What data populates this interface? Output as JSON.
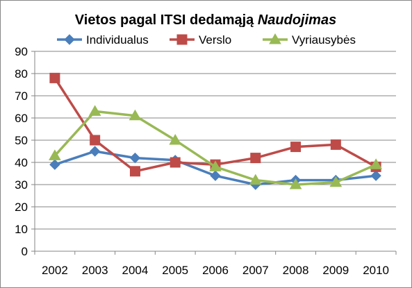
{
  "chart_data": {
    "type": "line",
    "title": "Vietos pagal ITSI dedamąją",
    "title_emphasis": "Naudojimas",
    "xlabel": "",
    "ylabel": "",
    "categories": [
      "2002",
      "2003",
      "2004",
      "2005",
      "2006",
      "2007",
      "2008",
      "2009",
      "2010"
    ],
    "ylim": [
      0,
      90
    ],
    "yticks": [
      "0",
      "10",
      "20",
      "30",
      "40",
      "50",
      "60",
      "70",
      "80",
      "90"
    ],
    "grid": true,
    "legend_position": "top",
    "series": [
      {
        "name": "Individualus",
        "color": "#4a7ebb",
        "marker": "diamond",
        "values": [
          39,
          45,
          42,
          41,
          34,
          30,
          32,
          32,
          34
        ]
      },
      {
        "name": "Verslo",
        "color": "#be4b48",
        "marker": "square",
        "values": [
          78,
          50,
          36,
          40,
          39,
          42,
          47,
          48,
          38
        ]
      },
      {
        "name": "Vyriausybės",
        "color": "#98b954",
        "marker": "triangle",
        "values": [
          43,
          63,
          61,
          50,
          38,
          32,
          30,
          31,
          39
        ]
      }
    ]
  }
}
